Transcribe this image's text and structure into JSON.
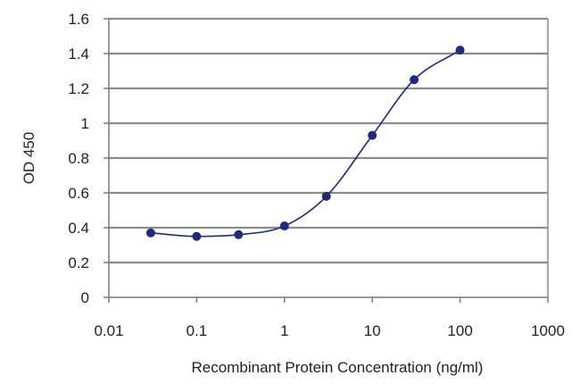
{
  "colors": {
    "background": "#ffffff",
    "plot_area": "#ffffff",
    "gridline": "#8c8c8c",
    "axis": "#7a7a7a",
    "series": "#1f2a7a",
    "text": "#222222"
  },
  "chart_data": {
    "type": "scatter",
    "title": "",
    "xlabel": "Recombinant Protein Concentration (ng/ml)",
    "ylabel": "OD 450",
    "x_scale": "log",
    "xlim": [
      0.01,
      1000
    ],
    "ylim": [
      0,
      1.6
    ],
    "x_ticks": [
      0.01,
      0.1,
      1,
      10,
      100,
      1000
    ],
    "x_tick_labels": [
      "0.01",
      "0.1",
      "1",
      "10",
      "100",
      "1000"
    ],
    "y_ticks": [
      0,
      0.2,
      0.4,
      0.6,
      0.8,
      1,
      1.2,
      1.4,
      1.6
    ],
    "y_tick_labels": [
      "0",
      "0.2",
      "0.4",
      "0.6",
      "0.8",
      "1",
      "1.2",
      "1.4",
      "1.6"
    ],
    "grid": "horizontal",
    "legend": "none",
    "series": [
      {
        "x": [
          0.03,
          0.1,
          0.3,
          1,
          3,
          10,
          30,
          100
        ],
        "y": [
          0.37,
          0.35,
          0.36,
          0.41,
          0.58,
          0.93,
          1.25,
          1.42
        ],
        "fit_curve": true
      }
    ]
  }
}
